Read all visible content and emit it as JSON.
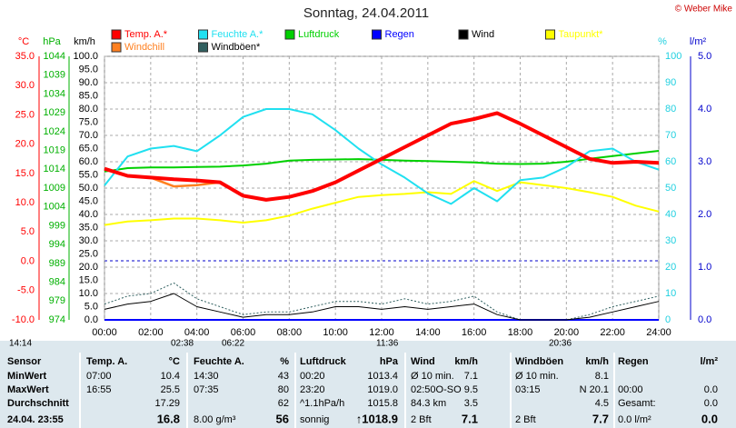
{
  "chart_data": {
    "type": "line",
    "title": "Sonntag, 24.04.2011",
    "credit": "© Weber Mike",
    "x": [
      0,
      1,
      2,
      3,
      4,
      5,
      6,
      7,
      8,
      9,
      10,
      11,
      12,
      13,
      14,
      15,
      16,
      17,
      18,
      19,
      20,
      21,
      22,
      23,
      24
    ],
    "xlim": [
      0,
      24
    ],
    "xticks": [
      {
        "value": 0,
        "label": "00:00"
      },
      {
        "value": 2,
        "label": "02:00"
      },
      {
        "value": 4,
        "label": "04:00"
      },
      {
        "value": 6,
        "label": "06:00"
      },
      {
        "value": 8,
        "label": "08:00"
      },
      {
        "value": 10,
        "label": "10:00"
      },
      {
        "value": 12,
        "label": "12:00"
      },
      {
        "value": 14,
        "label": "14:00"
      },
      {
        "value": 16,
        "label": "16:00"
      },
      {
        "value": 18,
        "label": "18:00"
      },
      {
        "value": 20,
        "label": "20:00"
      },
      {
        "value": 22,
        "label": "22:00"
      },
      {
        "value": 24,
        "label": "24:00"
      }
    ],
    "grid": true,
    "axes": [
      {
        "label": "°C",
        "color": "#ff0000",
        "lim": [
          -10,
          35
        ],
        "ticks": [
          {
            "value": -10,
            "label": "-10.0"
          },
          {
            "value": -5,
            "label": "-5.0"
          },
          {
            "value": 0,
            "label": "0.0"
          },
          {
            "value": 5,
            "label": "5.0"
          },
          {
            "value": 10,
            "label": "10.0"
          },
          {
            "value": 15,
            "label": "15.0"
          },
          {
            "value": 20,
            "label": "20.0"
          },
          {
            "value": 25,
            "label": "25.0"
          },
          {
            "value": 30,
            "label": "30.0"
          },
          {
            "value": 35,
            "label": "35.0"
          }
        ]
      },
      {
        "label": "hPa",
        "color": "#00b000",
        "lim": [
          974,
          1044
        ],
        "ticks": [
          974,
          979,
          984,
          989,
          994,
          999,
          1004,
          1009,
          1014,
          1019,
          1024,
          1029,
          1034,
          1039,
          1044
        ]
      },
      {
        "label": "km/h",
        "color": "#000000",
        "lim": [
          0,
          100
        ],
        "ticks": [
          {
            "value": 0,
            "label": "0.0"
          },
          {
            "value": 5,
            "label": "5.0"
          },
          {
            "value": 10,
            "label": "10.0"
          },
          {
            "value": 15,
            "label": "15.0"
          },
          {
            "value": 20,
            "label": "20.0"
          },
          {
            "value": 25,
            "label": "25.0"
          },
          {
            "value": 30,
            "label": "30.0"
          },
          {
            "value": 35,
            "label": "35.0"
          },
          {
            "value": 40,
            "label": "40.0"
          },
          {
            "value": 45,
            "label": "45.0"
          },
          {
            "value": 50,
            "label": "50.0"
          },
          {
            "value": 55,
            "label": "55.0"
          },
          {
            "value": 60,
            "label": "60.0"
          },
          {
            "value": 65,
            "label": "65.0"
          },
          {
            "value": 70,
            "label": "70.0"
          },
          {
            "value": 75,
            "label": "75.0"
          },
          {
            "value": 80,
            "label": "80.0"
          },
          {
            "value": 85,
            "label": "85.0"
          },
          {
            "value": 90,
            "label": "90.0"
          },
          {
            "value": 95,
            "label": "95.0"
          },
          {
            "value": 100,
            "label": "100.0"
          }
        ]
      },
      {
        "label": "%",
        "color": "#20d0e0",
        "lim": [
          0,
          100
        ],
        "ticks": [
          0,
          10,
          20,
          30,
          40,
          50,
          60,
          70,
          80,
          90,
          100
        ]
      },
      {
        "label": "l/m²",
        "color": "#0000cc",
        "lim": [
          0,
          5
        ],
        "ticks": [
          {
            "value": 0,
            "label": "0.0"
          },
          {
            "value": 1,
            "label": "1.0"
          },
          {
            "value": 2,
            "label": "2.0"
          },
          {
            "value": 3,
            "label": "3.0"
          },
          {
            "value": 4,
            "label": "4.0"
          },
          {
            "value": 5,
            "label": "5.0"
          }
        ]
      }
    ],
    "series": [
      {
        "name": "Temp. A.*",
        "color": "#ff0000",
        "axis": 0,
        "values": [
          15.8,
          14.6,
          14.3,
          14.0,
          13.8,
          13.5,
          11.2,
          10.5,
          11.0,
          12.0,
          13.5,
          15.5,
          17.5,
          19.5,
          21.5,
          23.5,
          24.3,
          25.3,
          23.5,
          21.5,
          19.5,
          17.5,
          16.8,
          17.0,
          16.8
        ]
      },
      {
        "name": "Feuchte A.*",
        "color": "#20e0f0",
        "axis": 3,
        "values": [
          51,
          62,
          65,
          66,
          64,
          70,
          77,
          80,
          80,
          78,
          72,
          65,
          59,
          54,
          48,
          44,
          50,
          45,
          53,
          54,
          58,
          64,
          65,
          60,
          57
        ]
      },
      {
        "name": "Luftdruck",
        "color": "#00d000",
        "axis": 1,
        "values": [
          1013.4,
          1014.3,
          1014.5,
          1014.5,
          1014.6,
          1014.7,
          1015.0,
          1015.5,
          1016.3,
          1016.5,
          1016.6,
          1016.7,
          1016.5,
          1016.3,
          1016.2,
          1016.0,
          1015.8,
          1015.5,
          1015.4,
          1015.5,
          1016.0,
          1016.8,
          1017.5,
          1018.2,
          1018.9
        ]
      },
      {
        "name": "Regen",
        "color": "#0000ff",
        "axis": 4,
        "values": [
          0,
          0,
          0,
          0,
          0,
          0,
          0,
          0,
          0,
          0,
          0,
          0,
          0,
          0,
          0,
          0,
          0,
          0,
          0,
          0,
          0,
          0,
          0,
          0,
          0
        ]
      },
      {
        "name": "Wind",
        "color": "#000000",
        "axis": 2,
        "values": [
          4,
          6,
          7,
          10,
          5,
          3,
          1,
          2,
          2,
          3,
          5,
          5,
          4,
          5,
          4,
          5,
          6,
          2,
          0,
          0,
          0,
          1,
          3,
          5,
          7
        ]
      },
      {
        "name": "Taupunkt*",
        "color": "#ffff00",
        "axis": 0,
        "values": [
          6.2,
          6.8,
          7.0,
          7.3,
          7.3,
          7.0,
          6.6,
          7.0,
          7.8,
          9.0,
          10.0,
          11.0,
          11.3,
          11.5,
          11.8,
          11.5,
          13.7,
          12.0,
          13.5,
          13.0,
          12.5,
          11.8,
          11.0,
          9.5,
          8.5
        ]
      },
      {
        "name": "Windchill",
        "color": "#ff8020",
        "axis": 0,
        "values": [
          15.8,
          14.6,
          14.3,
          12.8,
          13.0,
          13.5,
          11.2,
          10.5,
          11.0,
          12.0,
          13.5,
          15.5,
          17.5,
          19.5,
          21.5,
          23.5,
          24.3,
          25.3,
          23.5,
          21.5,
          19.5,
          17.5,
          16.8,
          17.0,
          16.8
        ]
      },
      {
        "name": "Windböen*",
        "color": "#306060",
        "axis": 2,
        "values": [
          6,
          9,
          10,
          14,
          8,
          5,
          2,
          3,
          3,
          5,
          7,
          7,
          6,
          8,
          6,
          7,
          9,
          3,
          0,
          0,
          0,
          2,
          5,
          7,
          9
        ]
      }
    ],
    "annotations": [
      "14:14",
      "02:38",
      "06:22",
      "11:36",
      "20:36"
    ]
  },
  "table": {
    "header": [
      "Sensor",
      "Temp. A.",
      "°C",
      "Feuchte A.",
      "%",
      "Luftdruck",
      "hPa",
      "Wind",
      "km/h",
      "Windböen",
      "km/h",
      "Regen",
      "l/m²"
    ],
    "rows": [
      [
        "MinWert",
        "07:00",
        "10.4",
        "14:30",
        "43",
        "00:20",
        "1013.4",
        "Ø 10 min.",
        "7.1",
        "Ø 10 min.",
        "8.1",
        null,
        null
      ],
      [
        "MaxWert",
        "16:55",
        "25.5",
        "07:35",
        "80",
        "23:20",
        "1019.0",
        "02:50",
        "O-SO 9.5",
        "03:15",
        "N 20.1",
        "00:00",
        "0.0"
      ],
      [
        "Durchschnitt",
        null,
        "17.29",
        null,
        "62",
        "^1.1hPa/h",
        "1015.8",
        "84.3 km",
        "3.5",
        null,
        "4.5",
        "Gesamt:",
        "0.0"
      ],
      [
        "24.04. 23:55",
        null,
        "16.8",
        "8.00 g/m³",
        "56",
        "sonnig",
        "↑1018.9",
        "2 Bft",
        "7.1",
        "2 Bft",
        "7.7",
        "0.0 l/m²",
        "0.0"
      ]
    ]
  }
}
